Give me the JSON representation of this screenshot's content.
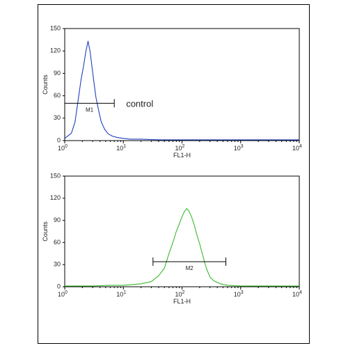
{
  "chart_data": [
    {
      "type": "line",
      "ylabel": "Counts",
      "xlabel": "FL1-H",
      "xscale": "log",
      "xlim": [
        1,
        10000
      ],
      "ylim": [
        0,
        150
      ],
      "yticks": [
        "0",
        "30",
        "60",
        "90",
        "120",
        "150"
      ],
      "xticks": [
        {
          "base": "10",
          "exp": "0"
        },
        {
          "base": "10",
          "exp": "1"
        },
        {
          "base": "10",
          "exp": "2"
        },
        {
          "base": "10",
          "exp": "3"
        },
        {
          "base": "10",
          "exp": "4"
        }
      ],
      "color": "#1f3fbf",
      "annotation": "control",
      "gate": {
        "label": "M1",
        "x": [
          1,
          7
        ],
        "y": 50
      },
      "series": [
        {
          "x": [
            1,
            1.3,
            1.5,
            1.7,
            1.9,
            2.1,
            2.3,
            2.5,
            2.7,
            2.9,
            3.1,
            3.4,
            3.8,
            4.2,
            4.8,
            5.5,
            6.5,
            8,
            10,
            13,
            20,
            40,
            100,
            1000,
            10000
          ],
          "y": [
            3,
            10,
            25,
            55,
            82,
            100,
            120,
            133,
            120,
            100,
            82,
            58,
            40,
            25,
            15,
            9,
            6,
            4,
            3,
            2,
            2,
            1,
            1,
            1,
            1
          ]
        }
      ]
    },
    {
      "type": "line",
      "ylabel": "Counts",
      "xlabel": "FL1-H",
      "xscale": "log",
      "xlim": [
        1,
        10000
      ],
      "ylim": [
        0,
        150
      ],
      "yticks": [
        "0",
        "30",
        "60",
        "90",
        "120",
        "150"
      ],
      "xticks": [
        {
          "base": "10",
          "exp": "0"
        },
        {
          "base": "10",
          "exp": "1"
        },
        {
          "base": "10",
          "exp": "2"
        },
        {
          "base": "10",
          "exp": "3"
        },
        {
          "base": "10",
          "exp": "4"
        }
      ],
      "color": "#39b82e",
      "gate": {
        "label": "M2",
        "x": [
          32,
          560
        ],
        "y": 34
      },
      "series": [
        {
          "x": [
            1,
            3,
            6,
            10,
            20,
            30,
            40,
            50,
            60,
            70,
            80,
            90,
            100,
            110,
            120,
            130,
            145,
            160,
            180,
            200,
            230,
            260,
            300,
            350,
            450,
            600,
            1000,
            10000
          ],
          "y": [
            1,
            1,
            2,
            2,
            4,
            7,
            15,
            25,
            45,
            60,
            75,
            85,
            95,
            102,
            106,
            103,
            95,
            85,
            70,
            58,
            40,
            25,
            13,
            8,
            4,
            2,
            1,
            1
          ]
        }
      ]
    }
  ]
}
